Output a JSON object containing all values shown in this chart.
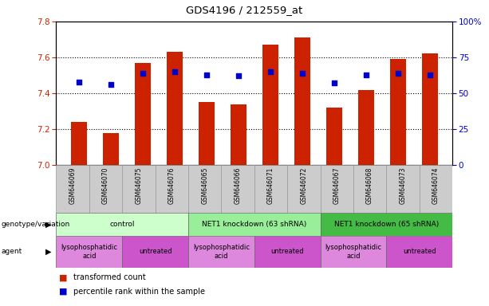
{
  "title": "GDS4196 / 212559_at",
  "samples": [
    "GSM646069",
    "GSM646070",
    "GSM646075",
    "GSM646076",
    "GSM646065",
    "GSM646066",
    "GSM646071",
    "GSM646072",
    "GSM646067",
    "GSM646068",
    "GSM646073",
    "GSM646074"
  ],
  "bar_values": [
    7.24,
    7.18,
    7.57,
    7.63,
    7.35,
    7.34,
    7.67,
    7.71,
    7.32,
    7.42,
    7.59,
    7.62
  ],
  "percentile_values": [
    58,
    56,
    64,
    65,
    63,
    62,
    65,
    64,
    57,
    63,
    64,
    63
  ],
  "bar_base": 7.0,
  "ylim_left": [
    7.0,
    7.8
  ],
  "ylim_right": [
    0,
    100
  ],
  "yticks_left": [
    7.0,
    7.2,
    7.4,
    7.6,
    7.8
  ],
  "yticks_right": [
    0,
    25,
    50,
    75,
    100
  ],
  "ytick_labels_right": [
    "0",
    "25",
    "50",
    "75",
    "100%"
  ],
  "bar_color": "#cc2200",
  "percentile_color": "#0000cc",
  "bg_color": "#ffffff",
  "tick_label_color_left": "#cc2200",
  "tick_label_color_right": "#0000cc",
  "genotype_groups": [
    {
      "label": "control",
      "start": 0,
      "end": 4,
      "color": "#ccffcc"
    },
    {
      "label": "NET1 knockdown (63 shRNA)",
      "start": 4,
      "end": 8,
      "color": "#99ee99"
    },
    {
      "label": "NET1 knockdown (65 shRNA)",
      "start": 8,
      "end": 12,
      "color": "#44bb44"
    }
  ],
  "agent_groups": [
    {
      "label": "lysophosphatidic\nacid",
      "start": 0,
      "end": 2,
      "color": "#dd88dd"
    },
    {
      "label": "untreated",
      "start": 2,
      "end": 4,
      "color": "#cc55cc"
    },
    {
      "label": "lysophosphatidic\nacid",
      "start": 4,
      "end": 6,
      "color": "#dd88dd"
    },
    {
      "label": "untreated",
      "start": 6,
      "end": 8,
      "color": "#cc55cc"
    },
    {
      "label": "lysophosphatidic\nacid",
      "start": 8,
      "end": 10,
      "color": "#dd88dd"
    },
    {
      "label": "untreated",
      "start": 10,
      "end": 12,
      "color": "#cc55cc"
    }
  ]
}
